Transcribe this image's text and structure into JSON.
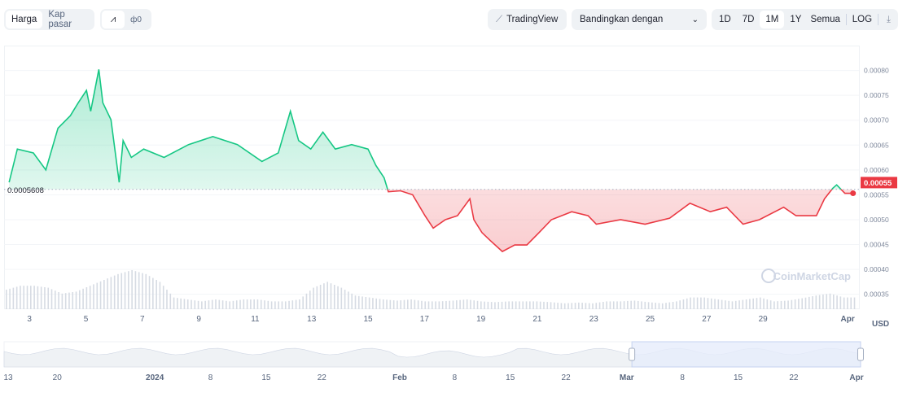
{
  "toolbar": {
    "metric_tabs": [
      "Harga",
      "Kap pasar"
    ],
    "chart_types": [
      {
        "icon": "line-chart-icon",
        "glyph": "⩘"
      },
      {
        "icon": "candlestick-icon",
        "glyph": "ф0"
      }
    ],
    "tradingview_label": "TradingView",
    "compare_label": "Bandingkan dengan",
    "ranges": [
      "1D",
      "7D",
      "1M",
      "1Y",
      "Semua"
    ],
    "active_range": "1M",
    "log_label": "LOG",
    "download_icon": "download-icon"
  },
  "colors": {
    "up": "#16c784",
    "down": "#ea3943",
    "nav_selected": "#e6ecfb"
  },
  "watermark": "CoinMarketCap",
  "currency": "USD",
  "chart_data": {
    "type": "line",
    "title": "",
    "reference_price": 0.0005608,
    "reference_label": "0.0005608",
    "current_price_label": "0.00055",
    "ylim": [
      0.00032,
      0.00085
    ],
    "yticks": [
      "0.00035",
      "0.00040",
      "0.00045",
      "0.00050",
      "0.00055",
      "0.00060",
      "0.00065",
      "0.00070",
      "0.00075",
      "0.00080"
    ],
    "xlim": [
      2.1,
      32.4
    ],
    "xticks": [
      {
        "day": 3,
        "label": "3"
      },
      {
        "day": 5,
        "label": "5"
      },
      {
        "day": 7,
        "label": "7"
      },
      {
        "day": 9,
        "label": "9"
      },
      {
        "day": 11,
        "label": "11"
      },
      {
        "day": 13,
        "label": "13"
      },
      {
        "day": 15,
        "label": "15"
      },
      {
        "day": 17,
        "label": "17"
      },
      {
        "day": 19,
        "label": "19"
      },
      {
        "day": 21,
        "label": "21"
      },
      {
        "day": 23,
        "label": "23"
      },
      {
        "day": 25,
        "label": "25"
      },
      {
        "day": 27,
        "label": "27"
      },
      {
        "day": 29,
        "label": "29"
      },
      {
        "day": 32,
        "label": "Apr"
      }
    ],
    "series": [
      {
        "name": "Price",
        "points": [
          [
            2.28,
            0.000575
          ],
          [
            2.57,
            0.000642
          ],
          [
            3.14,
            0.000634
          ],
          [
            3.58,
            0.0006
          ],
          [
            4.01,
            0.000684
          ],
          [
            4.45,
            0.000709
          ],
          [
            4.73,
            0.000735
          ],
          [
            5.02,
            0.00076
          ],
          [
            5.17,
            0.000718
          ],
          [
            5.46,
            0.000802
          ],
          [
            5.6,
            0.000735
          ],
          [
            5.89,
            0.000701
          ],
          [
            6.18,
            0.000575
          ],
          [
            6.32,
            0.000659
          ],
          [
            6.61,
            0.000625
          ],
          [
            7.05,
            0.000642
          ],
          [
            7.77,
            0.000625
          ],
          [
            8.64,
            0.000651
          ],
          [
            9.5,
            0.000667
          ],
          [
            10.37,
            0.000651
          ],
          [
            11.24,
            0.000617
          ],
          [
            11.82,
            0.000634
          ],
          [
            12.25,
            0.000718
          ],
          [
            12.54,
            0.000659
          ],
          [
            12.97,
            0.000642
          ],
          [
            13.4,
            0.000676
          ],
          [
            13.84,
            0.000642
          ],
          [
            14.42,
            0.000651
          ],
          [
            15.0,
            0.000642
          ],
          [
            15.28,
            0.000609
          ],
          [
            15.57,
            0.000584
          ],
          [
            15.72,
            0.000556
          ],
          [
            16.15,
            0.000558
          ],
          [
            16.58,
            0.00055
          ],
          [
            17.02,
            0.000508
          ],
          [
            17.31,
            0.000483
          ],
          [
            17.74,
            0.0005
          ],
          [
            18.17,
            0.000508
          ],
          [
            18.61,
            0.000542
          ],
          [
            18.75,
            0.0005
          ],
          [
            19.04,
            0.000474
          ],
          [
            19.33,
            0.000458
          ],
          [
            19.76,
            0.000436
          ],
          [
            20.2,
            0.000449
          ],
          [
            20.63,
            0.000449
          ],
          [
            21.06,
            0.000474
          ],
          [
            21.5,
            0.0005
          ],
          [
            22.22,
            0.000516
          ],
          [
            22.8,
            0.000508
          ],
          [
            23.09,
            0.000491
          ],
          [
            23.95,
            0.0005
          ],
          [
            24.82,
            0.000491
          ],
          [
            25.69,
            0.000503
          ],
          [
            26.41,
            0.000533
          ],
          [
            27.13,
            0.000516
          ],
          [
            27.71,
            0.000525
          ],
          [
            28.29,
            0.000491
          ],
          [
            28.87,
            0.0005
          ],
          [
            29.73,
            0.000525
          ],
          [
            30.17,
            0.000508
          ],
          [
            30.89,
            0.000508
          ],
          [
            31.18,
            0.000542
          ],
          [
            31.47,
            0.000563
          ],
          [
            31.61,
            0.00057
          ],
          [
            31.9,
            0.000553
          ],
          [
            32.19,
            0.000553
          ]
        ]
      }
    ],
    "volume_relative": [
      0.5,
      0.6,
      0.6,
      0.55,
      0.4,
      0.45,
      0.6,
      0.75,
      0.9,
      1.0,
      0.9,
      0.7,
      0.3,
      0.25,
      0.2,
      0.25,
      0.2,
      0.25,
      0.25,
      0.2,
      0.2,
      0.25,
      0.55,
      0.7,
      0.55,
      0.35,
      0.3,
      0.25,
      0.22,
      0.25,
      0.2,
      0.2,
      0.22,
      0.25,
      0.2,
      0.18,
      0.2,
      0.2,
      0.2,
      0.18,
      0.15,
      0.17,
      0.15,
      0.2,
      0.2,
      0.22,
      0.18,
      0.15,
      0.2,
      0.3,
      0.3,
      0.25,
      0.2,
      0.25,
      0.3,
      0.2,
      0.22,
      0.28,
      0.35,
      0.4,
      0.3
    ],
    "navigator": {
      "labels": [
        {
          "pos": 0.0,
          "label": "13"
        },
        {
          "pos": 0.062,
          "label": "20"
        },
        {
          "pos": 0.176,
          "label": "2024"
        },
        {
          "pos": 0.241,
          "label": "8"
        },
        {
          "pos": 0.306,
          "label": "15"
        },
        {
          "pos": 0.371,
          "label": "22"
        },
        {
          "pos": 0.462,
          "label": "Feb"
        },
        {
          "pos": 0.526,
          "label": "8"
        },
        {
          "pos": 0.591,
          "label": "15"
        },
        {
          "pos": 0.656,
          "label": "22"
        },
        {
          "pos": 0.727,
          "label": "Mar"
        },
        {
          "pos": 0.792,
          "label": "8"
        },
        {
          "pos": 0.857,
          "label": "15"
        },
        {
          "pos": 0.922,
          "label": "22"
        },
        {
          "pos": 1.0,
          "label": "Apr"
        }
      ],
      "selected_range": [
        0.733,
        1.0
      ]
    }
  }
}
